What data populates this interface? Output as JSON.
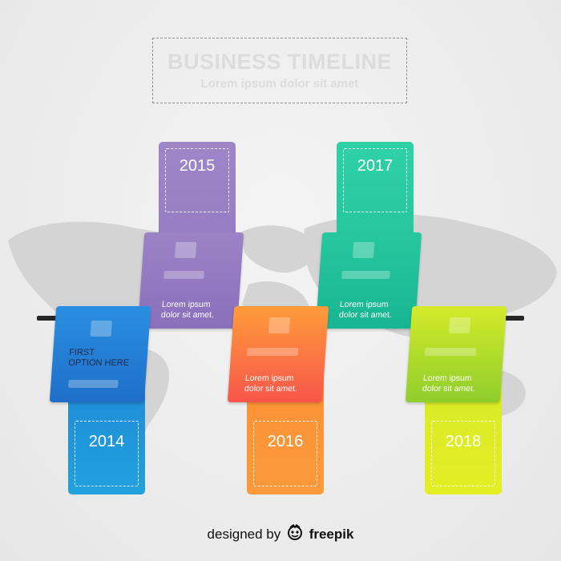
{
  "header": {
    "title": "BUSINESS TIMELINE",
    "subtitle": "Lorem ipsum dolor sit amet"
  },
  "milestones": [
    {
      "year": "2014",
      "title": "FIRST\nOPTION HERE",
      "body": "",
      "color": "#1f8fd9"
    },
    {
      "year": "2015",
      "title": "",
      "body": "Lorem ipsum\ndolor sit amet.",
      "color": "#9b80c4"
    },
    {
      "year": "2016",
      "title": "",
      "body": "Lorem ipsum\ndolor sit amet.",
      "color": "#fb8d33"
    },
    {
      "year": "2017",
      "title": "",
      "body": "Lorem ipsum\ndolor sit amet.",
      "color": "#27c7a0"
    },
    {
      "year": "2018",
      "title": "",
      "body": "Lorem ipsum\ndolor sit amet.",
      "color": "#c6e624"
    }
  ],
  "credit": {
    "prefix": "designed by",
    "icon": "freepik-logo-icon",
    "brand": "freepik"
  }
}
